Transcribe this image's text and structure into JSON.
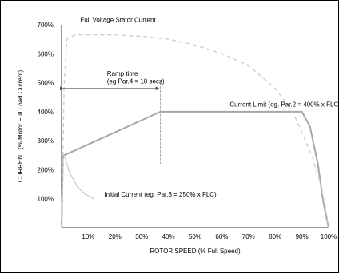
{
  "chart_data": {
    "type": "line",
    "xlabel": "ROTOR SPEED (% Full Speed)",
    "ylabel": "CURRENT (% Motor Full Load Current)",
    "xlim": [
      0,
      100
    ],
    "ylim": [
      0,
      700
    ],
    "x_ticks": [
      10,
      20,
      30,
      40,
      50,
      60,
      70,
      80,
      90,
      100
    ],
    "x_tick_labels": [
      "10%",
      "20%",
      "30%",
      "40%",
      "50%",
      "60%",
      "70%",
      "80%",
      "90%",
      "100%"
    ],
    "y_ticks": [
      100,
      200,
      300,
      400,
      500,
      600,
      700
    ],
    "y_tick_labels": [
      "100%",
      "200%",
      "300%",
      "400%",
      "500%",
      "600%",
      "700%"
    ],
    "grid": false,
    "series": [
      {
        "role": "soft-start-current",
        "color": "#a6a6a6",
        "style": "solid",
        "x": [
          0,
          0.5,
          1,
          37,
          90,
          93,
          96,
          98,
          100
        ],
        "y": [
          0,
          250,
          250,
          400,
          400,
          350,
          220,
          90,
          0
        ]
      },
      {
        "role": "full-voltage-stator-current",
        "color": "#cfcfcf",
        "style": "dashed",
        "x": [
          0,
          1,
          2,
          5,
          10,
          20,
          30,
          40,
          50,
          60,
          70,
          80,
          86,
          90,
          94,
          97,
          99,
          100
        ],
        "y": [
          0,
          500,
          650,
          665,
          665,
          665,
          660,
          650,
          630,
          600,
          560,
          480,
          410,
          330,
          240,
          150,
          60,
          0
        ]
      },
      {
        "role": "initial-current-decay",
        "color": "#cfcfcf",
        "style": "solid",
        "x": [
          1,
          3,
          6,
          9,
          12
        ],
        "y": [
          250,
          190,
          140,
          115,
          100
        ]
      }
    ],
    "annotations": [
      {
        "text": "Full Voltage Stator Current",
        "x": 7,
        "y": 710
      },
      {
        "text": "Ramp time",
        "x": 17,
        "y": 523
      },
      {
        "text": "(eg Par.4 = 10 secs)",
        "x": 17,
        "y": 497
      },
      {
        "text": "Current Limit (eg. Par.2 = 400% x FLC)",
        "x": 63,
        "y": 418
      },
      {
        "text": "Initial Current (eg. Par.3 = 250% x FLC)",
        "x": 16,
        "y": 108
      }
    ],
    "ramp_arrow": {
      "x_start": 0,
      "x_end": 37,
      "y": 480
    },
    "ramp_marker_x": 37
  }
}
